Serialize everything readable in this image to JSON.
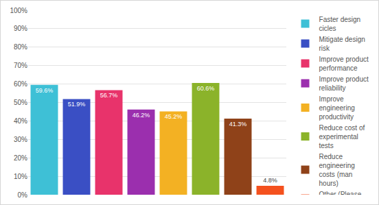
{
  "chart_data": {
    "type": "bar",
    "categories": [
      "Faster design cicles",
      "Mitigate design risk",
      "Improve product performance",
      "Improve product reliability",
      "Improve engineering productivity",
      "Reduce cost of experimental tests",
      "Reduce engineering costs (man hours)",
      "Other (Please specify)"
    ],
    "values": [
      59.6,
      51.9,
      56.7,
      46.2,
      45.2,
      60.6,
      41.3,
      4.8
    ],
    "value_labels": [
      "59.6%",
      "51.9%",
      "56.7%",
      "46.2%",
      "45.2%",
      "60.6%",
      "41.3%",
      "4.8%"
    ],
    "colors": [
      "#3ec0d6",
      "#3a4fc4",
      "#e8336b",
      "#9b2fae",
      "#f3b123",
      "#8bb32a",
      "#8f4219",
      "#f4511e"
    ],
    "ylim": [
      0,
      100
    ],
    "yticks": [
      {
        "value": 0,
        "label": "0%"
      },
      {
        "value": 10,
        "label": "10%"
      },
      {
        "value": 20,
        "label": "20%"
      },
      {
        "value": 30,
        "label": "30%"
      },
      {
        "value": 40,
        "label": "40%"
      },
      {
        "value": 50,
        "label": "50%"
      },
      {
        "value": 60,
        "label": "60%"
      },
      {
        "value": 70,
        "label": "70%"
      },
      {
        "value": 80,
        "label": "80%"
      },
      {
        "value": 90,
        "label": "90%"
      },
      {
        "value": 100,
        "label": "100%"
      }
    ],
    "grid": true,
    "legend": "right",
    "data_labels": true,
    "tick_labels": "y"
  }
}
